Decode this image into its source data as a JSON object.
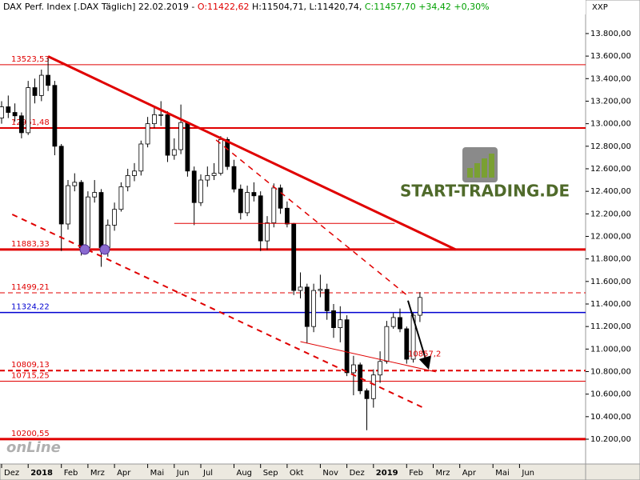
{
  "header": {
    "title": "DAX Perf. Index [.DAX  Täglich] 22.02.2019 -",
    "open": "O:11422,62",
    "high": "H:11504,71",
    "low": "L:11420,74",
    "close": "C:11457,70 +34,42 +0,30%"
  },
  "chart_data": {
    "type": "candlestick",
    "axis_label": "XXP",
    "logo": "START-TRADING.DE",
    "watermark": "onLine",
    "categories": [
      "Dez",
      null,
      null,
      null,
      "2018",
      null,
      null,
      null,
      null,
      "Feb",
      null,
      null,
      null,
      "Mrz",
      null,
      null,
      null,
      "Apr",
      null,
      null,
      null,
      null,
      "Mai",
      null,
      null,
      null,
      "Jun",
      null,
      null,
      null,
      "Jul",
      null,
      null,
      null,
      null,
      "Aug",
      null,
      null,
      null,
      "Sep",
      null,
      null,
      null,
      "Okt",
      null,
      null,
      null,
      null,
      "Nov",
      null,
      null,
      null,
      "Dez",
      null,
      null,
      null,
      "2019",
      null,
      null,
      null,
      null,
      "Feb",
      null,
      null,
      null,
      "Mrz",
      null,
      null,
      null,
      "Apr",
      null,
      null,
      null,
      null,
      "Mai",
      null,
      null,
      null,
      "Jun",
      null,
      null,
      null,
      null,
      null,
      null,
      null
    ],
    "open": [
      13050,
      13150,
      13100,
      13070,
      12920,
      13320,
      13250,
      13430,
      13340,
      12800,
      12110,
      12450,
      12480,
      11900,
      12350,
      12390,
      11900,
      12100,
      12240,
      12440,
      12540,
      12580,
      12820,
      13000,
      13080,
      13080,
      12720,
      12770,
      13010,
      12580,
      12300,
      12500,
      12540,
      12560,
      12860,
      12620,
      12420,
      12210,
      12390,
      12360,
      11960,
      12120,
      12430,
      12250,
      12110,
      11520,
      11550,
      11200,
      11520,
      11530,
      11340,
      11190,
      11260,
      10790,
      10860,
      10630,
      10560,
      10770,
      10890,
      11200,
      11280,
      11180,
      10910,
      11300,
      null,
      null,
      null,
      null,
      null,
      null,
      null,
      null,
      null,
      null,
      null,
      null,
      null,
      null,
      null,
      null,
      null,
      null,
      null,
      null,
      null,
      null
    ],
    "high": [
      13200,
      13250,
      13180,
      13100,
      13380,
      13400,
      13480,
      13597,
      13380,
      12820,
      12500,
      12560,
      12500,
      12400,
      12500,
      12420,
      12150,
      12300,
      12480,
      12600,
      12650,
      12850,
      13060,
      13150,
      13200,
      13110,
      12870,
      13170,
      13020,
      12620,
      12550,
      12620,
      12650,
      12890,
      12880,
      12680,
      12460,
      12450,
      12480,
      12400,
      12180,
      12470,
      12460,
      12310,
      12120,
      11680,
      11580,
      11580,
      11660,
      11580,
      11400,
      11380,
      11300,
      10940,
      10880,
      10650,
      10820,
      10980,
      11250,
      11320,
      11360,
      11200,
      11320,
      11505,
      null,
      null,
      null,
      null,
      null,
      null,
      null,
      null,
      null,
      null,
      null,
      null,
      null,
      null,
      null,
      null,
      null,
      null,
      null,
      null,
      null,
      null
    ],
    "low": [
      13000,
      13050,
      13020,
      12870,
      12900,
      13180,
      13200,
      13290,
      12720,
      11870,
      12060,
      12400,
      11830,
      11850,
      12300,
      11730,
      11820,
      12050,
      12220,
      12400,
      12490,
      12540,
      12790,
      12960,
      12980,
      12660,
      12680,
      12730,
      12530,
      12100,
      12270,
      12440,
      12500,
      12540,
      12590,
      12390,
      12150,
      12180,
      12310,
      11870,
      11880,
      12080,
      12200,
      12080,
      11480,
      11450,
      11050,
      11150,
      11460,
      11260,
      11100,
      11060,
      10760,
      10590,
      10600,
      10280,
      10480,
      10700,
      10870,
      11180,
      11150,
      10870,
      10880,
      11240,
      null,
      null,
      null,
      null,
      null,
      null,
      null,
      null,
      null,
      null,
      null,
      null,
      null,
      null,
      null,
      null,
      null,
      null,
      null,
      null,
      null,
      null
    ],
    "close": [
      13150,
      13100,
      13070,
      12920,
      13320,
      13250,
      13430,
      13340,
      12800,
      12110,
      12450,
      12480,
      11900,
      12350,
      12390,
      11900,
      12100,
      12240,
      12440,
      12540,
      12580,
      12820,
      13000,
      13080,
      13080,
      12720,
      12770,
      13010,
      12580,
      12300,
      12500,
      12540,
      12560,
      12860,
      12620,
      12420,
      12210,
      12390,
      12360,
      11960,
      12120,
      12430,
      12250,
      12110,
      11520,
      11550,
      11200,
      11520,
      11530,
      11340,
      11190,
      11260,
      10790,
      10860,
      10630,
      10560,
      10770,
      10890,
      11200,
      11280,
      11180,
      10910,
      11300,
      11458,
      null,
      null,
      null,
      null,
      null,
      null,
      null,
      null,
      null,
      null,
      null,
      null,
      null,
      null,
      null,
      null,
      null,
      null,
      null,
      null,
      null,
      null
    ],
    "up_color": "#ffffff",
    "down_color": "#000000",
    "wick_color": "#000000",
    "ylim": [
      9980,
      13970
    ],
    "yticks": [
      {
        "value": 10200,
        "label": "10.200,00"
      },
      {
        "value": 10400,
        "label": "10.400,00"
      },
      {
        "value": 10600,
        "label": "10.600,00"
      },
      {
        "value": 10800,
        "label": "10.800,00"
      },
      {
        "value": 11000,
        "label": "11.000,00"
      },
      {
        "value": 11200,
        "label": "11.200,00"
      },
      {
        "value": 11400,
        "label": "11.400,00"
      },
      {
        "value": 11600,
        "label": "11.600,00"
      },
      {
        "value": 11800,
        "label": "11.800,00"
      },
      {
        "value": 12000,
        "label": "12.000,00"
      },
      {
        "value": 12200,
        "label": "12.200,00"
      },
      {
        "value": 12400,
        "label": "12.400,00"
      },
      {
        "value": 12600,
        "label": "12.600,00"
      },
      {
        "value": 12800,
        "label": "12.800,00"
      },
      {
        "value": 13000,
        "label": "13.000,00"
      },
      {
        "value": 13200,
        "label": "13.200,00"
      },
      {
        "value": 13400,
        "label": "13.400,00"
      },
      {
        "value": 13600,
        "label": "13.600,00"
      },
      {
        "value": 13800,
        "label": "13.800,00"
      }
    ],
    "levels": [
      {
        "value": 13523.53,
        "label": "13523,53",
        "color": "#e00000",
        "width": 1,
        "dashed": false
      },
      {
        "value": 12961.48,
        "label": "12961,48",
        "color": "#e00000",
        "width": 2,
        "dashed": false
      },
      {
        "value": 11883.33,
        "label": "11883,33",
        "color": "#e00000",
        "width": 3,
        "dashed": false
      },
      {
        "value": 11499.21,
        "label": "11499,21",
        "color": "#e00000",
        "width": 1,
        "dashed": true
      },
      {
        "value": 11324.22,
        "label": "11324,22",
        "color": "#0000d0",
        "width": 1.5,
        "dashed": false
      },
      {
        "value": 10809.13,
        "label": "10809,13",
        "color": "#e00000",
        "width": 2,
        "dashed": true
      },
      {
        "value": 10715.25,
        "label": "10715,25",
        "color": "#e00000",
        "width": 1,
        "dashed": false
      },
      {
        "value": 10200.55,
        "label": "10200,55",
        "color": "#e00000",
        "width": 3,
        "dashed": false
      }
    ],
    "trendlines": [
      {
        "points": [
          [
            7,
            13597
          ],
          [
            68.4,
            11883
          ]
        ],
        "color": "#e00000",
        "width": 3,
        "dashed": false,
        "arrow": false
      },
      {
        "points": [
          [
            1.6,
            12195
          ],
          [
            63.6,
            10477
          ]
        ],
        "color": "#e00000",
        "width": 2,
        "dashed": true,
        "arrow": false
      },
      {
        "points": [
          [
            32.3,
            12856
          ],
          [
            61.2,
            11471
          ]
        ],
        "color": "#e00000",
        "width": 1.5,
        "dashed": true,
        "arrow": false
      },
      {
        "points": [
          [
            26,
            12115
          ],
          [
            59.2,
            12115
          ]
        ],
        "color": "#e00000",
        "width": 1,
        "dashed": false,
        "arrow": false
      },
      {
        "points": [
          [
            45,
            11066
          ],
          [
            65.4,
            10797
          ]
        ],
        "color": "#e00000",
        "width": 1,
        "dashed": false,
        "arrow": false
      },
      {
        "points": [
          [
            61.2,
            11430
          ],
          [
            64.2,
            10845
          ]
        ],
        "color": "#000000",
        "width": 2,
        "dashed": false,
        "arrow": true
      }
    ],
    "annotation": {
      "value": 10857.2,
      "label": "10857,2",
      "color": "#e00000"
    }
  }
}
